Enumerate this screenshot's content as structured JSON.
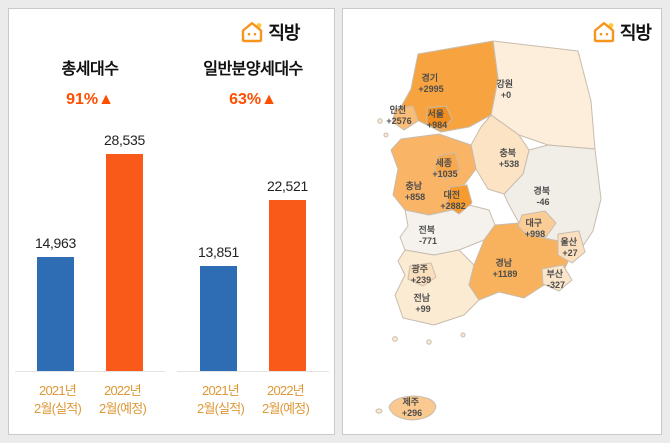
{
  "brand": {
    "name": "직방"
  },
  "colors": {
    "bar_blue": "#2E6DB4",
    "bar_orange": "#F95A19",
    "change_text": "#FF4E00",
    "axis_label": "#DD9838",
    "map_stroke": "#C8BCAE",
    "brand_orange": "#F7941D"
  },
  "chart_data": [
    {
      "type": "bar",
      "title": "총세대수",
      "change_label": "91%▲",
      "categories": [
        [
          "2021년",
          "2월(실적)"
        ],
        [
          "2022년",
          "2월(예정)"
        ]
      ],
      "values": [
        14963,
        28535
      ],
      "value_labels": [
        "14,963",
        "28,535"
      ],
      "bar_colors": [
        "#2E6DB4",
        "#F95A19"
      ],
      "ylim": [
        0,
        30000
      ]
    },
    {
      "type": "bar",
      "title": "일반분양세대수",
      "change_label": "63%▲",
      "categories": [
        [
          "2021년",
          "2월(실적)"
        ],
        [
          "2022년",
          "2월(예정)"
        ]
      ],
      "values": [
        13851,
        22521
      ],
      "value_labels": [
        "13,851",
        "22,521"
      ],
      "bar_colors": [
        "#2E6DB4",
        "#F95A19"
      ],
      "ylim": [
        0,
        30000
      ]
    },
    {
      "type": "heatmap",
      "title": "",
      "regions": [
        {
          "name": "경기",
          "value": "+2995",
          "color": "#F7A440"
        },
        {
          "name": "강원",
          "value": "+0",
          "color": "#FCEEDA"
        },
        {
          "name": "인천",
          "value": "+2576",
          "color": "#F9BD77"
        },
        {
          "name": "서울",
          "value": "+984",
          "color": "#F28E1E"
        },
        {
          "name": "세종",
          "value": "+1035",
          "color": "#F8A94E"
        },
        {
          "name": "충북",
          "value": "+538",
          "color": "#FBE3C4"
        },
        {
          "name": "충남",
          "value": "+858",
          "color": "#F9B465"
        },
        {
          "name": "대전",
          "value": "+2882",
          "color": "#F79B2E"
        },
        {
          "name": "경북",
          "value": "-46",
          "color": "#F1EEE8"
        },
        {
          "name": "대구",
          "value": "+998",
          "color": "#FACD96"
        },
        {
          "name": "전북",
          "value": "-771",
          "color": "#F5F2ED"
        },
        {
          "name": "울산",
          "value": "+27",
          "color": "#FBE0C0"
        },
        {
          "name": "경남",
          "value": "+1189",
          "color": "#F8B15C"
        },
        {
          "name": "광주",
          "value": "+239",
          "color": "#FBDFBC"
        },
        {
          "name": "부산",
          "value": "-327",
          "color": "#FBE6CC"
        },
        {
          "name": "전남",
          "value": "+99",
          "color": "#FCEBD3"
        },
        {
          "name": "제주",
          "value": "+296",
          "color": "#FAC98F"
        }
      ]
    }
  ]
}
